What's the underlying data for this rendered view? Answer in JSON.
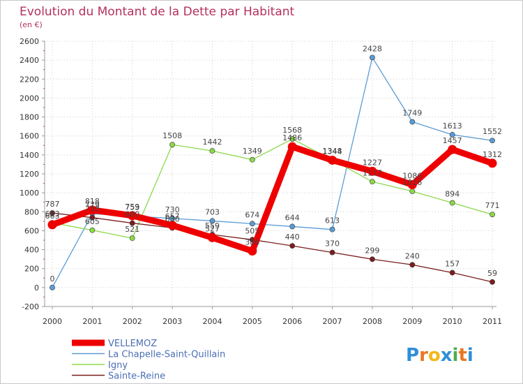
{
  "chart_data": {
    "type": "line",
    "title": "Evolution du Montant de la Dette par Habitant",
    "subtitle": "(en €)",
    "x": [
      "2000",
      "2001",
      "2002",
      "2003",
      "2004",
      "2005",
      "2006",
      "2007",
      "2008",
      "2009",
      "2010",
      "2011"
    ],
    "ylim": [
      -200,
      2600
    ],
    "yticks": [
      -200,
      0,
      200,
      400,
      600,
      800,
      1000,
      1200,
      1400,
      1600,
      1800,
      2000,
      2200,
      2400,
      2600
    ],
    "grid": true,
    "legend_position": "bottom-left",
    "series": [
      {
        "name": "VELLEMOZ",
        "color": "#ee0000",
        "values": [
          663,
          818,
          759,
          657,
          527,
          386,
          1486,
          1344,
          1227,
          1086,
          1457,
          1312
        ]
      },
      {
        "name": "La Chapelle-Saint-Quillain",
        "color": "#5b9bd5",
        "values": [
          0,
          779,
          753,
          730,
          703,
          674,
          644,
          613,
          2428,
          1749,
          1613,
          1552
        ]
      },
      {
        "name": "Igny",
        "color": "#8bd84a",
        "values": [
          683,
          605,
          521,
          1508,
          1442,
          1349,
          1568,
          1348,
          1117,
          1016,
          894,
          771
        ]
      },
      {
        "name": "Sainte-Reine",
        "color": "#7a1e1e",
        "values": [
          787,
          738,
          680,
          630,
          559,
          505,
          440,
          370,
          299,
          240,
          157,
          59
        ]
      }
    ]
  },
  "logo": {
    "text": "Proxiti"
  }
}
